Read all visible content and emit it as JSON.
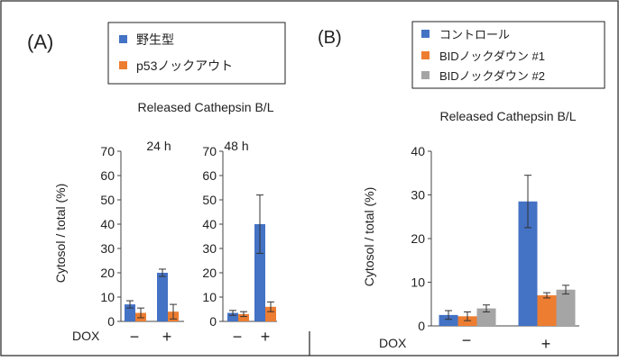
{
  "colors": {
    "blue": "#4472C4",
    "orange": "#ED7D31",
    "gray": "#A5A5A5"
  },
  "chart_data": [
    {
      "panel": "(A)",
      "type": "bar",
      "subtitle": "Released Cathepsin B/L",
      "ylabel": "Cytosol / total (%)",
      "xlabel": "DOX",
      "ylim": [
        0,
        70
      ],
      "yticks": [
        0,
        10,
        20,
        30,
        40,
        50,
        60,
        70
      ],
      "legend": [
        "野生型",
        "p53ノックアウト"
      ],
      "legend_position": "top",
      "groups": [
        {
          "title": "24 h",
          "categories": [
            "−",
            "+"
          ],
          "series": [
            {
              "name": "野生型",
              "color": "#4472C4",
              "values": [
                7,
                20
              ],
              "errors": [
                1.5,
                1.5
              ]
            },
            {
              "name": "p53ノックアウト",
              "color": "#ED7D31",
              "values": [
                3.5,
                4
              ],
              "errors": [
                2,
                3
              ]
            }
          ]
        },
        {
          "title": "48 h",
          "categories": [
            "−",
            "+"
          ],
          "series": [
            {
              "name": "野生型",
              "color": "#4472C4",
              "values": [
                3.5,
                40
              ],
              "errors": [
                1,
                12
              ]
            },
            {
              "name": "p53ノックアウト",
              "color": "#ED7D31",
              "values": [
                3,
                6
              ],
              "errors": [
                1,
                2
              ]
            }
          ]
        }
      ]
    },
    {
      "panel": "(B)",
      "type": "bar",
      "subtitle": "Released Cathepsin B/L",
      "ylabel": "Cytosol / total (%)",
      "xlabel": "DOX",
      "ylim": [
        0,
        40
      ],
      "yticks": [
        0,
        10,
        20,
        30,
        40
      ],
      "legend": [
        "コントロール",
        "BIDノックダウン #1",
        "BIDノックダウン #2"
      ],
      "legend_position": "top",
      "categories": [
        "−",
        "+"
      ],
      "series": [
        {
          "name": "コントロール",
          "color": "#4472C4",
          "values": [
            2.5,
            28.5
          ],
          "errors": [
            1,
            6
          ]
        },
        {
          "name": "BIDノックダウン #1",
          "color": "#ED7D31",
          "values": [
            2.2,
            7
          ],
          "errors": [
            1,
            0.6
          ]
        },
        {
          "name": "BIDノックダウン #2",
          "color": "#A5A5A5",
          "values": [
            4,
            8.3
          ],
          "errors": [
            0.8,
            1
          ]
        }
      ]
    }
  ]
}
